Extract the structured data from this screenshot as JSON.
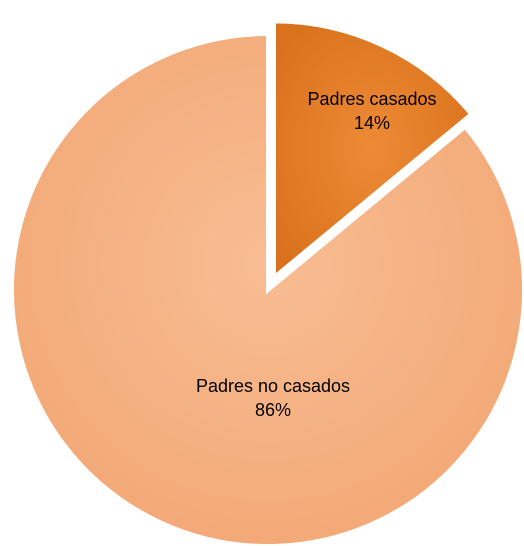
{
  "chart_data": {
    "type": "pie",
    "explode": "first-slice",
    "slices": [
      {
        "label": "Padres casados",
        "value_label": "14%",
        "value": 14,
        "color": "#e8812d"
      },
      {
        "label": "Padres no casados",
        "value_label": "86%",
        "value": 86,
        "color": "#f5b183"
      }
    ],
    "title": "",
    "legend": "none"
  }
}
